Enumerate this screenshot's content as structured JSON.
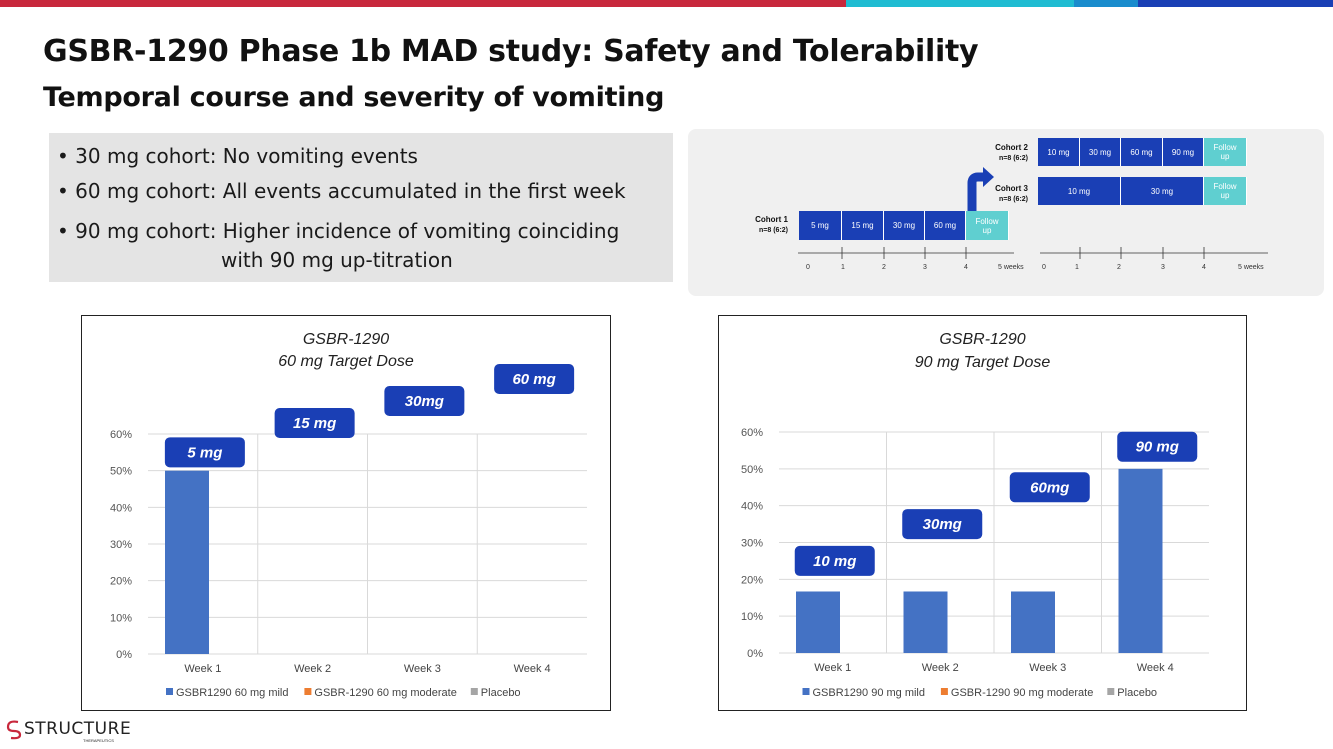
{
  "colors": {
    "bar_blue": "#4472c4",
    "bar_orange": "#ed7d31",
    "bar_gray": "#a5a5a5",
    "callout_blue": "#1a3fb5",
    "teal": "#5fcfd0",
    "top_red": "#c8283c",
    "top_cyan": "#1fbcd2",
    "top_mid": "#1a8ccd",
    "top_navy": "#1a3fb5"
  },
  "title": "GSBR-1290 Phase 1b MAD study: Safety and Tolerability",
  "subtitle": "Temporal course and severity of vomiting",
  "bullets": [
    "30 mg cohort: No vomiting events",
    "60 mg cohort: All events accumulated in the first week",
    "90 mg cohort: Higher incidence of vomiting coinciding"
  ],
  "bullet3_cont": "with 90 mg up-titration",
  "timeline": {
    "cohort1": {
      "name": "Cohort 1",
      "n": "n=8 (6:2)",
      "doses": [
        "5 mg",
        "15 mg",
        "30 mg",
        "60 mg"
      ],
      "follow": "Follow up"
    },
    "cohort2": {
      "name": "Cohort 2",
      "n": "n=8 (6:2)",
      "doses": [
        "10 mg",
        "30 mg",
        "60 mg",
        "90 mg"
      ],
      "follow": "Follow up"
    },
    "cohort3": {
      "name": "Cohort 3",
      "n": "n=8 (6:2)",
      "doses": [
        "10 mg",
        "30 mg"
      ],
      "follow": "Follow up"
    },
    "ticks_left": [
      "0",
      "1",
      "2",
      "3",
      "4",
      "5 weeks"
    ],
    "ticks_right": [
      "0",
      "1",
      "2",
      "3",
      "4",
      "5 weeks"
    ]
  },
  "chart_data": [
    {
      "type": "bar",
      "title": "GSBR-1290",
      "subtitle": "60 mg Target Dose",
      "categories": [
        "Week 1",
        "Week 2",
        "Week 3",
        "Week 4"
      ],
      "series": [
        {
          "name": "GSBR1290 60 mg mild",
          "values": [
            50,
            0,
            0,
            0
          ]
        },
        {
          "name": "GSBR-1290 60 mg moderate",
          "values": [
            0,
            0,
            0,
            0
          ]
        },
        {
          "name": "Placebo",
          "values": [
            0,
            0,
            0,
            0
          ]
        }
      ],
      "yticks": [
        "0%",
        "10%",
        "20%",
        "30%",
        "40%",
        "50%",
        "60%"
      ],
      "ylim": [
        0,
        60
      ],
      "callouts": [
        "5 mg",
        "15 mg",
        "30mg",
        "60 mg"
      ],
      "callout_levels": [
        55,
        63,
        69,
        75
      ]
    },
    {
      "type": "bar",
      "title": "GSBR-1290",
      "subtitle": "90 mg Target Dose",
      "categories": [
        "Week 1",
        "Week 2",
        "Week 3",
        "Week 4"
      ],
      "series": [
        {
          "name": "GSBR1290 90 mg mild",
          "values": [
            16.7,
            16.7,
            16.7,
            50
          ]
        },
        {
          "name": "GSBR-1290 90 mg moderate",
          "values": [
            0,
            0,
            0,
            0
          ]
        },
        {
          "name": "Placebo",
          "values": [
            0,
            0,
            0,
            0
          ]
        }
      ],
      "yticks": [
        "0%",
        "10%",
        "20%",
        "30%",
        "40%",
        "50%",
        "60%"
      ],
      "ylim": [
        0,
        60
      ],
      "callouts": [
        "10 mg",
        "30mg",
        "60mg",
        "90 mg"
      ],
      "callout_levels": [
        25,
        35,
        45,
        56
      ]
    }
  ],
  "logo": {
    "text": "STRUCTURE",
    "sub": "THERAPEUTICS"
  }
}
